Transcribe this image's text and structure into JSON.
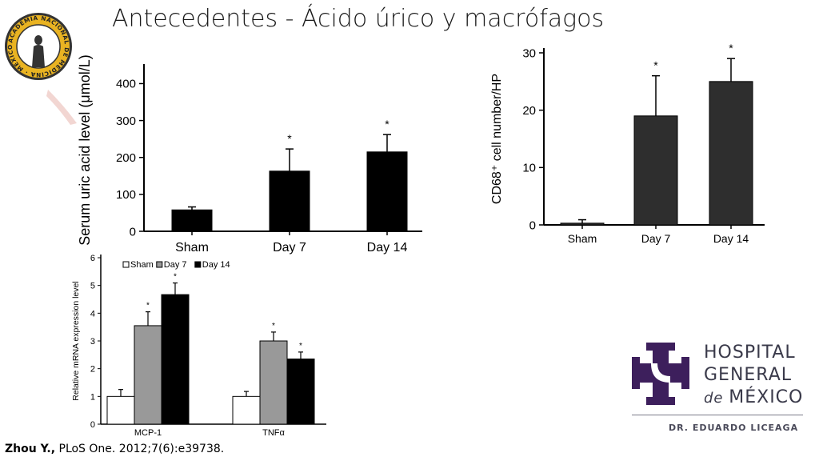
{
  "slide": {
    "title": "Antecedentes - Ácido úrico y macrófagos",
    "citation_author": "Zhou Y.,",
    "citation_rest": " PLoS One. 2012;7(6):e39738."
  },
  "seal": {
    "text": "ACADEMIA NACIONAL DE MEDICINA · MÉXICO ·",
    "colors": {
      "ring": "#e9b322",
      "center": "#ffffff",
      "figure": "#333333"
    }
  },
  "hospital_logo": {
    "line1": "HOSPITAL",
    "line2": "GENERAL",
    "line3_prefix": "de ",
    "line3_main": "MÉXICO",
    "subtitle": "DR. EDUARDO LICEAGA",
    "cross_color": "#3d1f5c"
  },
  "chart_data": [
    {
      "type": "bar",
      "categories": [
        "Sham",
        "Day 7",
        "Day 14"
      ],
      "values": [
        58,
        163,
        215
      ],
      "errors": [
        8,
        60,
        47
      ],
      "significance": [
        "",
        "*",
        "*"
      ],
      "ylabel": "Serum uric acid level (μmol/L)",
      "yticks": [
        0,
        100,
        200,
        300,
        400
      ],
      "ylim": [
        0,
        440
      ],
      "bar_color": "#000000"
    },
    {
      "type": "bar",
      "categories": [
        "Sham",
        "Day 7",
        "Day 14"
      ],
      "values": [
        0.3,
        19,
        25
      ],
      "errors": [
        0.6,
        7,
        4
      ],
      "significance": [
        "",
        "*",
        "*"
      ],
      "ylabel": "CD68⁺ cell number/HP",
      "yticks": [
        0,
        10,
        20,
        30
      ],
      "ylim": [
        0,
        30
      ],
      "bar_color": "#2e2e2e"
    },
    {
      "type": "bar",
      "categories": [
        "MCP-1",
        "TNFα"
      ],
      "series": [
        {
          "name": "Sham",
          "values": [
            1.0,
            1.0
          ],
          "errors": [
            0.25,
            0.18
          ],
          "color": "#ffffff",
          "significance": [
            "",
            ""
          ]
        },
        {
          "name": "Day 7",
          "values": [
            3.55,
            3.0
          ],
          "errors": [
            0.5,
            0.32
          ],
          "color": "#999999",
          "significance": [
            "*",
            "*"
          ]
        },
        {
          "name": "Day 14",
          "values": [
            4.67,
            2.35
          ],
          "errors": [
            0.42,
            0.25
          ],
          "color": "#000000",
          "significance": [
            "*",
            "*"
          ]
        }
      ],
      "ylabel": "Relative mRNA expression level",
      "yticks": [
        0,
        1,
        2,
        3,
        4,
        5,
        6
      ],
      "ylim": [
        0,
        6
      ],
      "legend": "top-left"
    }
  ]
}
